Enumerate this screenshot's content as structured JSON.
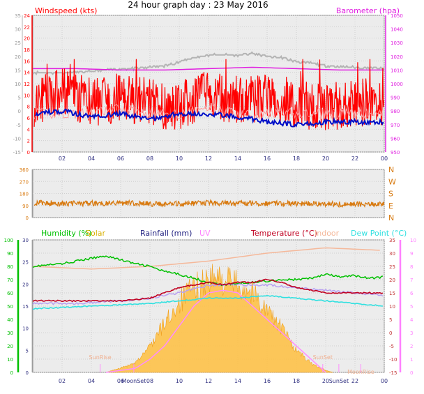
{
  "title": "24 hour graph day : 23 May 2016",
  "colors": {
    "wind": "#ff0000",
    "wind_gust_light": "#ff9a9a",
    "baro": "#e020e0",
    "baro_gray": "#b4b4b4",
    "temp_blue": "#0010c8",
    "dir": "#d87a10",
    "humidity": "#00c000",
    "solar_fill": "#ffc040",
    "solar_line": "#ff8cff",
    "temperature": "#c00020",
    "indoor": "#f5b89a",
    "dewpoint": "#30e0e0",
    "rain": "#000080",
    "uv": "#ff80ff",
    "panel": "#ececec"
  },
  "chart_data": [
    {
      "type": "line",
      "panel": "wind-baro",
      "left_axis_label": "Windspeed (kts)",
      "right_axis_label": "Barometer (hpa)",
      "x_ticks": [
        "02",
        "04",
        "06",
        "08",
        "10",
        "12",
        "14",
        "16",
        "18",
        "20",
        "22",
        "00"
      ],
      "left_ticks": [
        "24",
        "22",
        "20",
        "18",
        "16",
        "14",
        "12",
        "10",
        "8",
        "6",
        "4",
        "2",
        "0"
      ],
      "left_ylim": [
        0,
        25
      ],
      "outer_left_ticks": [
        "35",
        "30",
        "25",
        "20",
        "15",
        "10",
        "5",
        "0",
        "-5",
        "-10",
        "-15"
      ],
      "outer_left_ylim": [
        -15,
        35
      ],
      "right_ticks": [
        "1050",
        "1040",
        "1030",
        "1020",
        "1010",
        "1000",
        "990",
        "980",
        "970",
        "960",
        "950"
      ],
      "right_ylim": [
        950,
        1050
      ],
      "grid": true,
      "series": [
        {
          "key": "wind_speed",
          "x": [
            0,
            2,
            4,
            6,
            8,
            10,
            12,
            14,
            16,
            18,
            20,
            22,
            24
          ],
          "values": [
            9,
            11,
            9,
            10,
            9,
            8,
            11,
            9,
            10,
            9,
            8,
            9,
            9
          ]
        },
        {
          "key": "wind_average",
          "x": [
            0,
            2,
            4,
            6,
            8,
            10,
            12,
            14,
            16,
            18,
            20,
            22,
            24
          ],
          "values": [
            7,
            7,
            7,
            8,
            7,
            7,
            8,
            7,
            7,
            7,
            7,
            7,
            7
          ]
        },
        {
          "key": "barometer_upper",
          "x": [
            0,
            3,
            6,
            9,
            12,
            15,
            18,
            21,
            24
          ],
          "values": [
            1011,
            1011,
            1010,
            1010,
            1011,
            1012,
            1011,
            1010,
            1010
          ]
        },
        {
          "key": "barometer_gray",
          "x": [
            0,
            2,
            4,
            6,
            7,
            8,
            9,
            10,
            11,
            12,
            13,
            14,
            15,
            16,
            17,
            18,
            19,
            20,
            22,
            24
          ],
          "values": [
            1008,
            1008,
            1009,
            1011,
            1011,
            1012,
            1013,
            1016,
            1019,
            1021,
            1021,
            1021,
            1022,
            1020,
            1019,
            1016,
            1015,
            1013,
            1012,
            1011
          ]
        },
        {
          "key": "temperature_blue",
          "x": [
            0,
            2,
            4,
            6,
            8,
            10,
            12,
            14,
            16,
            18,
            20,
            22,
            24
          ],
          "values": [
            -1,
            0,
            -2,
            -1,
            -3,
            -1,
            -1,
            -2,
            -4,
            -5,
            -4,
            -4,
            -4
          ]
        }
      ]
    },
    {
      "type": "line",
      "panel": "wind-direction",
      "left_ticks": [
        "360",
        "270",
        "180",
        "90",
        "0"
      ],
      "ylim": [
        0,
        360
      ],
      "right_labels": [
        "N",
        "W",
        "S",
        "E",
        "N"
      ],
      "grid": true,
      "series": [
        {
          "key": "direction",
          "x": [
            0,
            3,
            6,
            9,
            12,
            15,
            18,
            21,
            24
          ],
          "values": [
            110,
            105,
            110,
            100,
            110,
            105,
            105,
            100,
            100
          ]
        }
      ]
    },
    {
      "type": "area",
      "panel": "hum-sol-temp",
      "labels": [
        "Humidity (%)",
        "Solar",
        "Rainfall (mm)",
        "UV",
        "Temperature (°C)",
        "Indoor",
        "Dew Point (°C)"
      ],
      "x_ticks": [
        "02",
        "04",
        "06",
        "08",
        "10",
        "12",
        "14",
        "16",
        "18",
        "20",
        "22",
        "00"
      ],
      "annotations": [
        {
          "text": "SunRise",
          "x": 4.6
        },
        {
          "text": "MoonSet",
          "x": 6.9
        },
        {
          "text": "SunSet",
          "x": 19.8
        },
        {
          "text": "SunSet2",
          "x": 20.9
        },
        {
          "text": "MoonRise",
          "x": 22.4
        }
      ],
      "humidity_ticks": [
        "100",
        "90",
        "80",
        "70",
        "60",
        "50",
        "40",
        "30",
        "20",
        "10",
        "0"
      ],
      "humidity_ylim": [
        0,
        100
      ],
      "rain_ticks": [
        "30",
        "25",
        "20",
        "15",
        "10",
        "5",
        "0"
      ],
      "rain_ylim": [
        0,
        30
      ],
      "temp_ticks": [
        "35",
        "30",
        "25",
        "20",
        "15",
        "10",
        "5",
        "0",
        "-5",
        "-10",
        "-15"
      ],
      "temp_ylim": [
        -15,
        35
      ],
      "uv_ticks": [
        "10",
        "9",
        "8",
        "7",
        "6",
        "5",
        "4",
        "3",
        "2",
        "1",
        "0"
      ],
      "uv_ylim": [
        0,
        10
      ],
      "grid": true,
      "series": [
        {
          "key": "humidity",
          "x": [
            0,
            2,
            4,
            5,
            6,
            7,
            8,
            9,
            10,
            11,
            12,
            13,
            14,
            15,
            16,
            17,
            18,
            19,
            20,
            21,
            22,
            23,
            24
          ],
          "values": [
            80,
            82,
            86,
            88,
            85,
            82,
            80,
            76,
            74,
            71,
            68,
            66,
            67,
            68,
            69,
            70,
            70,
            71,
            74,
            72,
            73,
            71,
            72
          ]
        },
        {
          "key": "indoor",
          "x": [
            0,
            4,
            8,
            12,
            16,
            20,
            24
          ],
          "values": [
            25,
            24,
            25,
            27,
            30,
            32,
            31
          ]
        },
        {
          "key": "temperature",
          "x": [
            0,
            3,
            6,
            8,
            9,
            10,
            11,
            12,
            13,
            14,
            15,
            16,
            17,
            18,
            19,
            20,
            22,
            24
          ],
          "values": [
            12,
            12,
            12,
            13,
            15,
            17,
            18,
            19,
            18,
            19,
            19,
            20,
            19,
            17,
            16,
            15,
            15,
            15
          ]
        },
        {
          "key": "apparent",
          "x": [
            0,
            3,
            6,
            8,
            10,
            12,
            14,
            16,
            18,
            20,
            22,
            24
          ],
          "values": [
            11,
            11,
            12,
            13,
            15,
            18,
            18,
            18,
            17,
            16,
            15,
            14
          ]
        },
        {
          "key": "dewpoint",
          "x": [
            0,
            4,
            8,
            10,
            12,
            14,
            16,
            18,
            20,
            24
          ],
          "values": [
            9,
            10,
            11,
            12,
            13,
            13,
            14,
            13,
            12,
            10
          ]
        },
        {
          "key": "solar",
          "x": [
            5,
            6,
            7,
            8,
            9,
            10,
            11,
            12,
            13,
            14,
            15,
            16,
            17,
            18,
            19,
            20,
            20.5
          ],
          "values": [
            0,
            1,
            2,
            6,
            11,
            16,
            19,
            21,
            21,
            20,
            18,
            14,
            10,
            5,
            2,
            0.5,
            0
          ]
        },
        {
          "key": "uv",
          "x": [
            5,
            7,
            8,
            9,
            10,
            11,
            12,
            13,
            14,
            15,
            16,
            17,
            18,
            19,
            20
          ],
          "values": [
            0,
            0.3,
            1,
            2,
            3.5,
            5,
            6,
            6.2,
            6,
            5,
            4,
            3,
            2,
            1,
            0
          ]
        }
      ]
    }
  ]
}
